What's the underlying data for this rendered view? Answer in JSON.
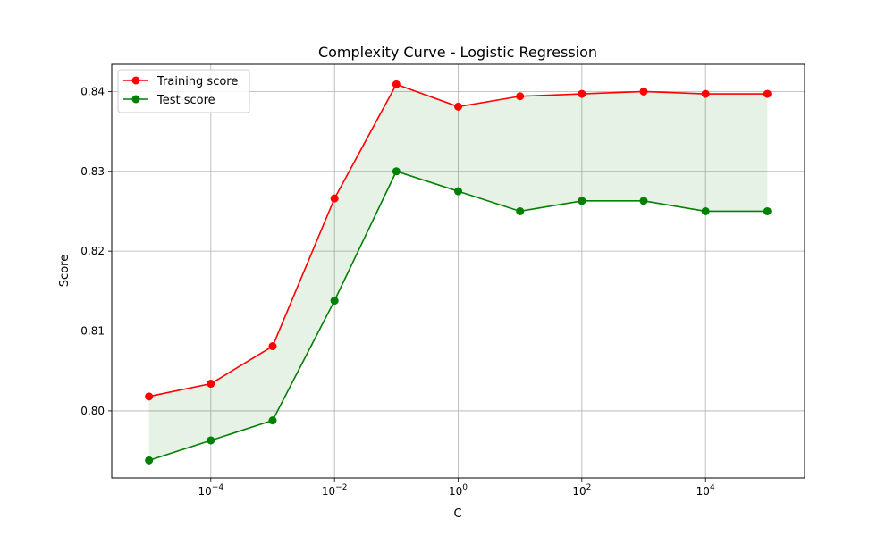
{
  "chart_data": {
    "type": "line",
    "title": "Complexity Curve - Logistic Regression",
    "xlabel": "C",
    "ylabel": "Score",
    "xscale": "log",
    "x": [
      1e-05,
      0.0001,
      0.001,
      0.01,
      0.1,
      1,
      10,
      100,
      1000,
      10000,
      100000
    ],
    "xlim": [
      2.5e-06,
      400000
    ],
    "ylim": [
      0.7916,
      0.8434
    ],
    "grid": true,
    "legend_position": "top-left",
    "shaded_band": {
      "between": [
        "Training score",
        "Test score"
      ],
      "color": "#008000",
      "opacity": 0.1
    },
    "series": [
      {
        "name": "Training score",
        "color": "#ff0000",
        "marker": "circle",
        "values": [
          0.8018,
          0.8034,
          0.8081,
          0.8266,
          0.8409,
          0.8381,
          0.8394,
          0.8397,
          0.84,
          0.8397,
          0.8397
        ]
      },
      {
        "name": "Test score",
        "color": "#008000",
        "marker": "circle",
        "values": [
          0.7938,
          0.7963,
          0.7988,
          0.8138,
          0.83,
          0.8275,
          0.825,
          0.8263,
          0.8263,
          0.825,
          0.825
        ]
      }
    ],
    "x_ticks": [
      {
        "value": 0.0001,
        "base": "10",
        "exp": "−4"
      },
      {
        "value": 0.01,
        "base": "10",
        "exp": "−2"
      },
      {
        "value": 1,
        "base": "10",
        "exp": "0"
      },
      {
        "value": 100,
        "base": "10",
        "exp": "2"
      },
      {
        "value": 10000,
        "base": "10",
        "exp": "4"
      }
    ],
    "y_ticks": [
      {
        "value": 0.8,
        "label": "0.80"
      },
      {
        "value": 0.81,
        "label": "0.81"
      },
      {
        "value": 0.82,
        "label": "0.82"
      },
      {
        "value": 0.83,
        "label": "0.83"
      },
      {
        "value": 0.84,
        "label": "0.84"
      }
    ]
  }
}
